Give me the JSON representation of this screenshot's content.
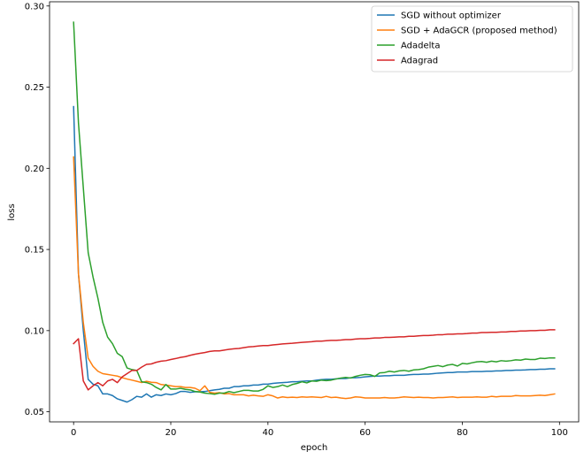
{
  "chart_data": {
    "type": "line",
    "title": "",
    "xlabel": "epoch",
    "ylabel": "loss",
    "xlim": [
      -4.95,
      103.95
    ],
    "ylim": [
      0.0438,
      0.3026
    ],
    "xticks": [
      0,
      20,
      40,
      60,
      80,
      100
    ],
    "yticks": [
      0.05,
      0.1,
      0.15,
      0.2,
      0.25,
      0.3
    ],
    "xtick_labels": [
      "0",
      "20",
      "40",
      "60",
      "80",
      "100"
    ],
    "ytick_labels": [
      "0.05",
      "0.10",
      "0.15",
      "0.20",
      "0.25",
      "0.30"
    ],
    "grid": false,
    "legend_position": "top-right",
    "series": [
      {
        "name": "SGD without optimizer",
        "color": "#1f77b4",
        "x": [
          0,
          1,
          2,
          3,
          4,
          5,
          6,
          7,
          8,
          9,
          10,
          11,
          12,
          13,
          14,
          15,
          16,
          17,
          18,
          19,
          20,
          21,
          22,
          23,
          24,
          25,
          26,
          27,
          28,
          29,
          30,
          31,
          32,
          33,
          34,
          35,
          36,
          37,
          38,
          39,
          40,
          41,
          42,
          43,
          44,
          45,
          46,
          47,
          48,
          49,
          50,
          51,
          52,
          53,
          54,
          55,
          56,
          57,
          58,
          59,
          60,
          61,
          62,
          63,
          64,
          65,
          66,
          67,
          68,
          69,
          70,
          71,
          72,
          73,
          74,
          75,
          76,
          77,
          78,
          79,
          80,
          81,
          82,
          83,
          84,
          85,
          86,
          87,
          88,
          89,
          90,
          91,
          92,
          93,
          94,
          95,
          96,
          97,
          98,
          99
        ],
        "y": [
          0.238,
          0.135,
          0.1,
          0.07,
          0.067,
          0.066,
          0.061,
          0.061,
          0.06,
          0.058,
          0.057,
          0.056,
          0.0575,
          0.0595,
          0.059,
          0.061,
          0.059,
          0.0605,
          0.06,
          0.061,
          0.0605,
          0.0612,
          0.0625,
          0.0625,
          0.062,
          0.0623,
          0.0623,
          0.0625,
          0.063,
          0.0635,
          0.0638,
          0.0645,
          0.0645,
          0.0655,
          0.0655,
          0.066,
          0.066,
          0.0665,
          0.0665,
          0.067,
          0.067,
          0.0675,
          0.0678,
          0.068,
          0.0682,
          0.0685,
          0.0685,
          0.0688,
          0.069,
          0.069,
          0.0695,
          0.0698,
          0.07,
          0.07,
          0.0703,
          0.0705,
          0.0705,
          0.071,
          0.071,
          0.0712,
          0.0715,
          0.0718,
          0.072,
          0.072,
          0.0722,
          0.0722,
          0.0725,
          0.0725,
          0.0725,
          0.0728,
          0.073,
          0.073,
          0.0732,
          0.0732,
          0.0735,
          0.0738,
          0.074,
          0.0742,
          0.0742,
          0.0745,
          0.0745,
          0.0745,
          0.0748,
          0.0748,
          0.0748,
          0.075,
          0.075,
          0.0752,
          0.0752,
          0.0755,
          0.0755,
          0.0757,
          0.0757,
          0.0758,
          0.076,
          0.076,
          0.0762,
          0.0762,
          0.0765,
          0.0765
        ]
      },
      {
        "name": "SGD + AdaGCR (proposed method)",
        "color": "#ff7f0e",
        "x": [
          0,
          1,
          2,
          3,
          4,
          5,
          6,
          7,
          8,
          9,
          10,
          11,
          12,
          13,
          14,
          15,
          16,
          17,
          18,
          19,
          20,
          21,
          22,
          23,
          24,
          25,
          26,
          27,
          28,
          29,
          30,
          31,
          32,
          33,
          34,
          35,
          36,
          37,
          38,
          39,
          40,
          41,
          42,
          43,
          44,
          45,
          46,
          47,
          48,
          49,
          50,
          51,
          52,
          53,
          54,
          55,
          56,
          57,
          58,
          59,
          60,
          61,
          62,
          63,
          64,
          65,
          66,
          67,
          68,
          69,
          70,
          71,
          72,
          73,
          74,
          75,
          76,
          77,
          78,
          79,
          80,
          81,
          82,
          83,
          84,
          85,
          86,
          87,
          88,
          89,
          90,
          91,
          92,
          93,
          94,
          95,
          96,
          97,
          98,
          99
        ],
        "y": [
          0.207,
          0.135,
          0.105,
          0.083,
          0.078,
          0.075,
          0.0735,
          0.073,
          0.0725,
          0.072,
          0.071,
          0.0702,
          0.0695,
          0.0688,
          0.068,
          0.0688,
          0.0682,
          0.068,
          0.0668,
          0.0665,
          0.066,
          0.0655,
          0.0655,
          0.065,
          0.065,
          0.0645,
          0.063,
          0.066,
          0.062,
          0.0615,
          0.0618,
          0.061,
          0.0612,
          0.0605,
          0.0605,
          0.0605,
          0.0598,
          0.0602,
          0.0598,
          0.0595,
          0.0605,
          0.0598,
          0.0585,
          0.0592,
          0.0588,
          0.059,
          0.0588,
          0.0592,
          0.059,
          0.0592,
          0.059,
          0.0588,
          0.0595,
          0.0588,
          0.059,
          0.0585,
          0.0582,
          0.0585,
          0.0592,
          0.059,
          0.0585,
          0.0585,
          0.0585,
          0.0585,
          0.0588,
          0.0585,
          0.0585,
          0.0588,
          0.0592,
          0.059,
          0.0588,
          0.059,
          0.0588,
          0.0588,
          0.0585,
          0.0588,
          0.0588,
          0.059,
          0.0592,
          0.0588,
          0.059,
          0.059,
          0.059,
          0.0592,
          0.059,
          0.059,
          0.0595,
          0.0592,
          0.0595,
          0.0595,
          0.0595,
          0.06,
          0.0598,
          0.0598,
          0.0598,
          0.06,
          0.0602,
          0.06,
          0.0605,
          0.061
        ]
      },
      {
        "name": "Adadelta",
        "color": "#2ca02c",
        "x": [
          0,
          1,
          2,
          3,
          4,
          5,
          6,
          7,
          8,
          9,
          10,
          11,
          12,
          13,
          14,
          15,
          16,
          17,
          18,
          19,
          20,
          21,
          22,
          23,
          24,
          25,
          26,
          27,
          28,
          29,
          30,
          31,
          32,
          33,
          34,
          35,
          36,
          37,
          38,
          39,
          40,
          41,
          42,
          43,
          44,
          45,
          46,
          47,
          48,
          49,
          50,
          51,
          52,
          53,
          54,
          55,
          56,
          57,
          58,
          59,
          60,
          61,
          62,
          63,
          64,
          65,
          66,
          67,
          68,
          69,
          70,
          71,
          72,
          73,
          74,
          75,
          76,
          77,
          78,
          79,
          80,
          81,
          82,
          83,
          84,
          85,
          86,
          87,
          88,
          89,
          90,
          91,
          92,
          93,
          94,
          95,
          96,
          97,
          98,
          99
        ],
        "y": [
          0.29,
          0.228,
          0.188,
          0.148,
          0.133,
          0.12,
          0.105,
          0.096,
          0.092,
          0.086,
          0.084,
          0.077,
          0.076,
          0.0755,
          0.0685,
          0.068,
          0.067,
          0.065,
          0.0635,
          0.0668,
          0.064,
          0.064,
          0.0645,
          0.0638,
          0.0635,
          0.0625,
          0.0622,
          0.0615,
          0.0612,
          0.0608,
          0.0615,
          0.0615,
          0.0625,
          0.0618,
          0.0625,
          0.0632,
          0.0632,
          0.0628,
          0.0628,
          0.0638,
          0.066,
          0.065,
          0.0655,
          0.0665,
          0.0655,
          0.0668,
          0.0675,
          0.0685,
          0.0678,
          0.069,
          0.0688,
          0.0695,
          0.0692,
          0.0695,
          0.0702,
          0.0708,
          0.0712,
          0.0708,
          0.0718,
          0.0725,
          0.073,
          0.0728,
          0.0718,
          0.074,
          0.0742,
          0.075,
          0.0745,
          0.0752,
          0.0755,
          0.075,
          0.0758,
          0.076,
          0.0765,
          0.0775,
          0.078,
          0.0785,
          0.0778,
          0.0788,
          0.0792,
          0.0782,
          0.0798,
          0.0795,
          0.0802,
          0.0808,
          0.081,
          0.0805,
          0.0812,
          0.0808,
          0.0815,
          0.0812,
          0.0815,
          0.082,
          0.0818,
          0.0825,
          0.0822,
          0.0822,
          0.083,
          0.0828,
          0.0832,
          0.0832
        ]
      },
      {
        "name": "Adagrad",
        "color": "#d62728",
        "x": [
          0,
          1,
          2,
          3,
          4,
          5,
          6,
          7,
          8,
          9,
          10,
          11,
          12,
          13,
          14,
          15,
          16,
          17,
          18,
          19,
          20,
          21,
          22,
          23,
          24,
          25,
          26,
          27,
          28,
          29,
          30,
          31,
          32,
          33,
          34,
          35,
          36,
          37,
          38,
          39,
          40,
          41,
          42,
          43,
          44,
          45,
          46,
          47,
          48,
          49,
          50,
          51,
          52,
          53,
          54,
          55,
          56,
          57,
          58,
          59,
          60,
          61,
          62,
          63,
          64,
          65,
          66,
          67,
          68,
          69,
          70,
          71,
          72,
          73,
          74,
          75,
          76,
          77,
          78,
          79,
          80,
          81,
          82,
          83,
          84,
          85,
          86,
          87,
          88,
          89,
          90,
          91,
          92,
          93,
          94,
          95,
          96,
          97,
          98,
          99
        ],
        "y": [
          0.092,
          0.095,
          0.069,
          0.0635,
          0.066,
          0.068,
          0.066,
          0.069,
          0.07,
          0.068,
          0.0715,
          0.0735,
          0.0755,
          0.0755,
          0.0775,
          0.0792,
          0.0795,
          0.0805,
          0.0812,
          0.0815,
          0.0822,
          0.0828,
          0.0835,
          0.084,
          0.0848,
          0.0855,
          0.086,
          0.0865,
          0.0872,
          0.0875,
          0.0875,
          0.088,
          0.0885,
          0.0888,
          0.089,
          0.0895,
          0.09,
          0.0902,
          0.0905,
          0.0908,
          0.0908,
          0.0912,
          0.0915,
          0.0918,
          0.092,
          0.0922,
          0.0925,
          0.0928,
          0.093,
          0.0932,
          0.0935,
          0.0935,
          0.0938,
          0.094,
          0.094,
          0.0942,
          0.0945,
          0.0945,
          0.0948,
          0.095,
          0.095,
          0.0952,
          0.0955,
          0.0955,
          0.0958,
          0.0958,
          0.096,
          0.0962,
          0.0962,
          0.0965,
          0.0965,
          0.0968,
          0.097,
          0.097,
          0.0972,
          0.0975,
          0.0975,
          0.0978,
          0.0978,
          0.098,
          0.098,
          0.0982,
          0.0985,
          0.0985,
          0.0988,
          0.0988,
          0.099,
          0.099,
          0.0992,
          0.0992,
          0.0995,
          0.0995,
          0.0998,
          0.0998,
          0.1,
          0.1,
          0.1002,
          0.1002,
          0.1005,
          0.1005
        ]
      }
    ]
  }
}
